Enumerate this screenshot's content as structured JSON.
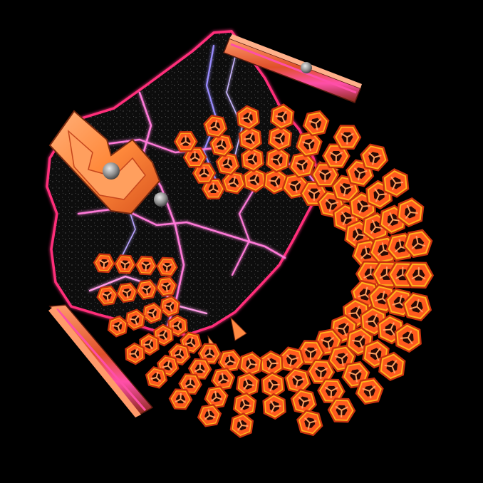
{
  "scene": {
    "palette": {
      "background": "#000000",
      "ring_orange": "#ff5a1f",
      "ring_dark": "#c93210",
      "ring_highlight": "#ffa060",
      "gold": "#ffb21c",
      "panel_dark": "#0b0b0b",
      "panel_glow": "#ff2e7a",
      "lightning": "#ff7ad9",
      "lightning_violet": "#9a8cff",
      "wrench": "#ff8a3c",
      "screw": "#9a9a9a",
      "strip_pink": "#ff4fa8"
    },
    "objects": [
      "honeycomb-ring",
      "starry-panel",
      "lightning-bolts",
      "wrench",
      "screws",
      "plank-top",
      "plank-bottom",
      "spikes"
    ]
  }
}
